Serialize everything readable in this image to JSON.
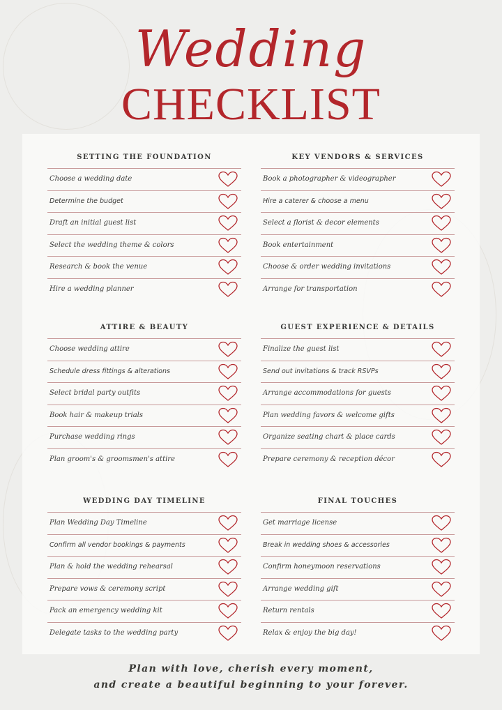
{
  "header": {
    "script_title": "Wedding",
    "title": "CHECKLIST"
  },
  "colors": {
    "accent": "#b3262b",
    "rule": "#c89a9a",
    "text": "#3c3c3a"
  },
  "icons": {
    "checkbox": "heart-outline-icon"
  },
  "sections": [
    {
      "title": "SETTING THE FOUNDATION",
      "items": [
        "Choose a wedding date",
        "Determine the budget",
        "Draft an initial guest list",
        "Select the wedding theme & colors",
        "Research & book the venue",
        "Hire a wedding planner"
      ]
    },
    {
      "title": "KEY VENDORS & SERVICES",
      "items": [
        "Book a photographer & videographer",
        "Hire a caterer & choose a menu",
        "Select a florist & decor elements",
        "Book entertainment",
        "Choose & order wedding invitations",
        "Arrange for transportation"
      ]
    },
    {
      "title": "ATTIRE & BEAUTY",
      "items": [
        "Choose wedding attire",
        "Schedule dress fittings & alterations",
        "Select bridal party outfits",
        "Book hair & makeup trials",
        "Purchase wedding rings",
        "Plan groom's & groomsmen's attire"
      ]
    },
    {
      "title": "GUEST EXPERIENCE & DETAILS",
      "items": [
        "Finalize the guest list",
        "Send out invitations & track RSVPs",
        "Arrange accommodations for guests",
        "Plan wedding favors & welcome gifts",
        "Organize seating chart & place cards",
        "Prepare ceremony & reception décor"
      ]
    },
    {
      "title": "WEDDING DAY TIMELINE",
      "items": [
        "Plan Wedding Day Timeline",
        "Confirm all vendor bookings & payments",
        "Plan & hold the wedding rehearsal",
        "Prepare vows & ceremony script",
        "Pack an emergency wedding kit",
        "Delegate tasks to the wedding party"
      ]
    },
    {
      "title": "FINAL TOUCHES",
      "items": [
        "Get marriage license",
        "Break in wedding shoes & accessories",
        "Confirm honeymoon reservations",
        "Arrange wedding gift",
        "Return rentals",
        "Relax & enjoy the big day!"
      ]
    }
  ],
  "footer": {
    "line1": "Plan with love, cherish every moment,",
    "line2": "and create a beautiful beginning to your forever."
  }
}
